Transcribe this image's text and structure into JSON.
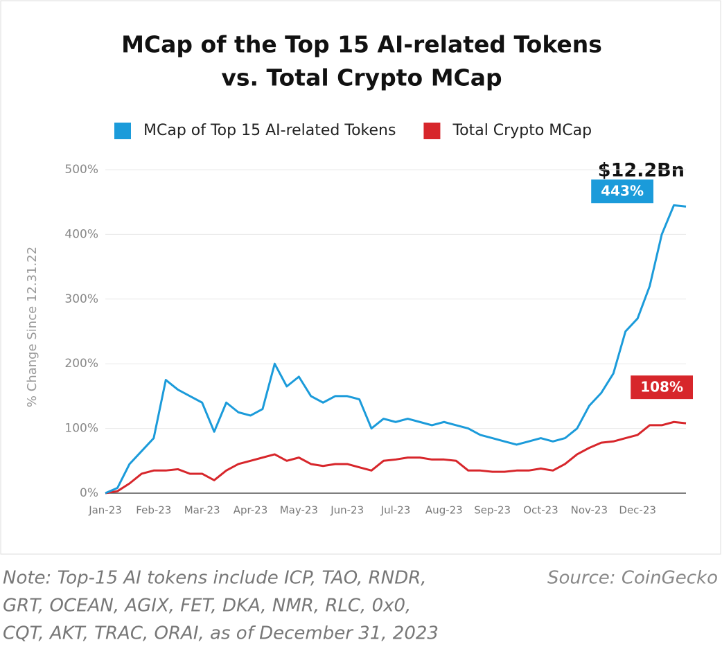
{
  "chart_data": {
    "type": "line",
    "title": [
      "MCap of the Top 15 AI-related Tokens",
      "vs. Total Crypto MCap"
    ],
    "y_label": "% Change Since 12.31.22",
    "annotation": "$12.2Bn",
    "categories": [
      "Jan-23",
      null,
      null,
      null,
      "Feb-23",
      null,
      null,
      null,
      "Mar-23",
      null,
      null,
      null,
      "Apr-23",
      null,
      null,
      null,
      "May-23",
      null,
      null,
      null,
      "Jun-23",
      null,
      null,
      null,
      "Jul-23",
      null,
      null,
      null,
      "Aug-23",
      null,
      null,
      null,
      "Sep-23",
      null,
      null,
      null,
      "Oct-23",
      null,
      null,
      null,
      "Nov-23",
      null,
      null,
      null,
      "Dec-23",
      null,
      null,
      null,
      null
    ],
    "series": [
      {
        "name": "MCap of Top 15 AI-related Tokens",
        "color": "#1b9bda",
        "last_label": "443%",
        "values": [
          0,
          8,
          45,
          65,
          85,
          175,
          160,
          150,
          140,
          95,
          140,
          125,
          120,
          130,
          200,
          165,
          180,
          150,
          140,
          150,
          150,
          145,
          100,
          115,
          110,
          115,
          110,
          105,
          110,
          105,
          100,
          90,
          85,
          80,
          75,
          80,
          85,
          80,
          85,
          100,
          135,
          155,
          185,
          250,
          270,
          320,
          400,
          445,
          443
        ]
      },
      {
        "name": "Total Crypto MCap",
        "color": "#d7262b",
        "last_label": "108%",
        "values": [
          0,
          3,
          15,
          30,
          35,
          35,
          37,
          30,
          30,
          20,
          35,
          45,
          50,
          55,
          60,
          50,
          55,
          45,
          42,
          45,
          45,
          40,
          35,
          50,
          52,
          55,
          55,
          52,
          52,
          50,
          35,
          35,
          33,
          33,
          35,
          35,
          38,
          35,
          45,
          60,
          70,
          78,
          80,
          85,
          90,
          105,
          105,
          110,
          108
        ]
      }
    ],
    "ylim": [
      0,
      500
    ],
    "yticks": [
      {
        "value": 0,
        "label": "0%"
      },
      {
        "value": 100,
        "label": "100%"
      },
      {
        "value": 200,
        "label": "200%"
      },
      {
        "value": 300,
        "label": "300%"
      },
      {
        "value": 400,
        "label": "400%"
      },
      {
        "value": 500,
        "label": "500%"
      }
    ],
    "grid": true,
    "legend": "top"
  },
  "footer": {
    "note": [
      "Note: Top-15 AI tokens include ICP, TAO, RNDR,",
      "GRT, OCEAN, AGIX, FET, DKA, NMR, RLC, 0x0,",
      "CQT, AKT, TRAC, ORAI, as of December 31, 2023"
    ],
    "source": "Source: CoinGecko"
  }
}
